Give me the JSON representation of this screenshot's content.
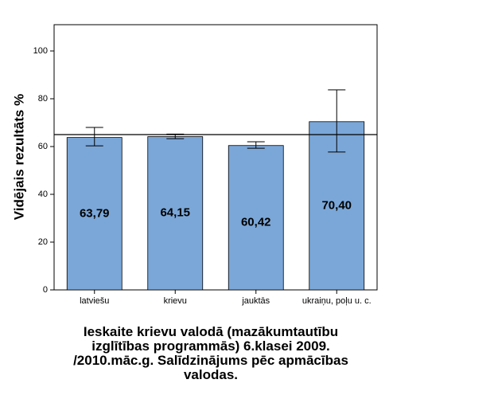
{
  "chart_data": {
    "type": "bar",
    "title": "Ieskaite krievu valodā (mazākumtautību izglītības programmās) 6.klasei 2009. /2010.māc.g. Salīdzinājums pēc apmācības valodas.",
    "y_label": "Vidējais rezultāts %",
    "categories": [
      "latviešu",
      "krievu",
      "jauktās",
      "ukraiņu, poļu u. c."
    ],
    "values": [
      63.79,
      64.15,
      60.42,
      70.4
    ],
    "value_labels": [
      "63,79",
      "64,15",
      "60,42",
      "70,40"
    ],
    "ci_low": [
      60.3,
      63.3,
      59.3,
      57.7
    ],
    "ci_high": [
      68,
      65.2,
      62,
      83.7
    ],
    "reference_line": 65,
    "color": "#7ba7d8",
    "ylim": [
      0,
      111
    ],
    "yticks": [
      0,
      20,
      40,
      60,
      80,
      100
    ]
  }
}
